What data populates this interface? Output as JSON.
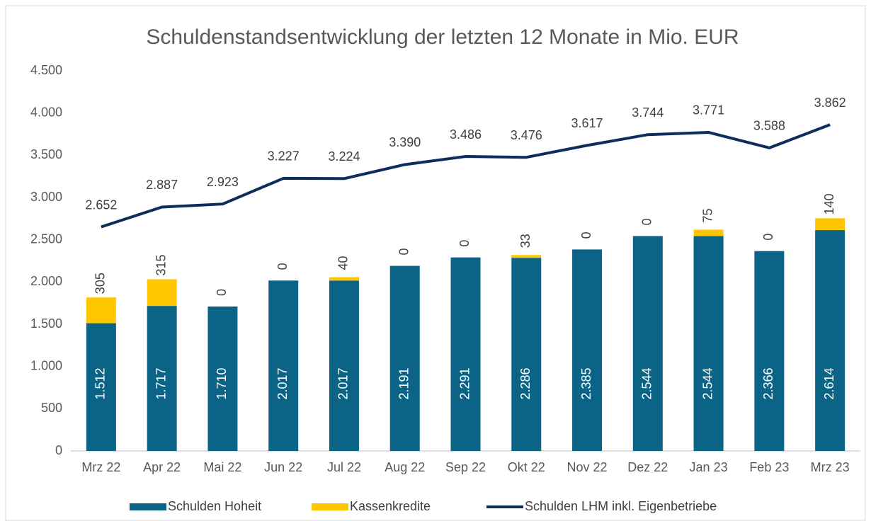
{
  "chart_data": {
    "type": "bar",
    "stacked": true,
    "title": "Schuldenstandsentwicklung der letzten 12 Monate in Mio. EUR",
    "categories": [
      "Mrz 22",
      "Apr 22",
      "Mai 22",
      "Jun 22",
      "Jul 22",
      "Aug 22",
      "Sep 22",
      "Okt 22",
      "Nov 22",
      "Dez 22",
      "Jan 23",
      "Feb 23",
      "Mrz 23"
    ],
    "series": [
      {
        "name": "Schulden Hoheit",
        "type": "bar",
        "color": "#0b6486",
        "values": [
          1512,
          1717,
          1710,
          2017,
          2017,
          2191,
          2291,
          2286,
          2385,
          2544,
          2544,
          2366,
          2614
        ],
        "value_labels": [
          "1.512",
          "1.717",
          "1.710",
          "2.017",
          "2.017",
          "2.191",
          "2.291",
          "2.286",
          "2.385",
          "2.544",
          "2.544",
          "2.366",
          "2.614"
        ]
      },
      {
        "name": "Kassenkredite",
        "type": "bar",
        "color": "#ffc600",
        "values": [
          305,
          315,
          0,
          0,
          40,
          0,
          0,
          33,
          0,
          0,
          75,
          0,
          140
        ]
      },
      {
        "name": "Schulden LHM inkl. Eigenbetriebe",
        "type": "line",
        "color": "#0e2d5a",
        "values": [
          2652,
          2887,
          2923,
          3227,
          3224,
          3390,
          3486,
          3476,
          3617,
          3744,
          3771,
          3588,
          3862
        ],
        "value_labels": [
          "2.652",
          "2.887",
          "2.923",
          "3.227",
          "3.224",
          "3.390",
          "3.486",
          "3.476",
          "3.617",
          "3.744",
          "3.771",
          "3.588",
          "3.862"
        ]
      }
    ],
    "ylim": [
      0,
      4500
    ],
    "yticks": [
      0,
      500,
      {
        "value": 1000,
        "label": "1.000"
      },
      {
        "value": 1500,
        "label": "1.500"
      },
      {
        "value": 2000,
        "label": "2.000"
      },
      {
        "value": 2500,
        "label": "2.500"
      },
      {
        "value": 3000,
        "label": "3.000"
      },
      {
        "value": 3500,
        "label": "3.500"
      },
      {
        "value": 4000,
        "label": "4.000"
      },
      {
        "value": 4500,
        "label": "4.500"
      }
    ],
    "grid": false,
    "legend": "bottom"
  }
}
